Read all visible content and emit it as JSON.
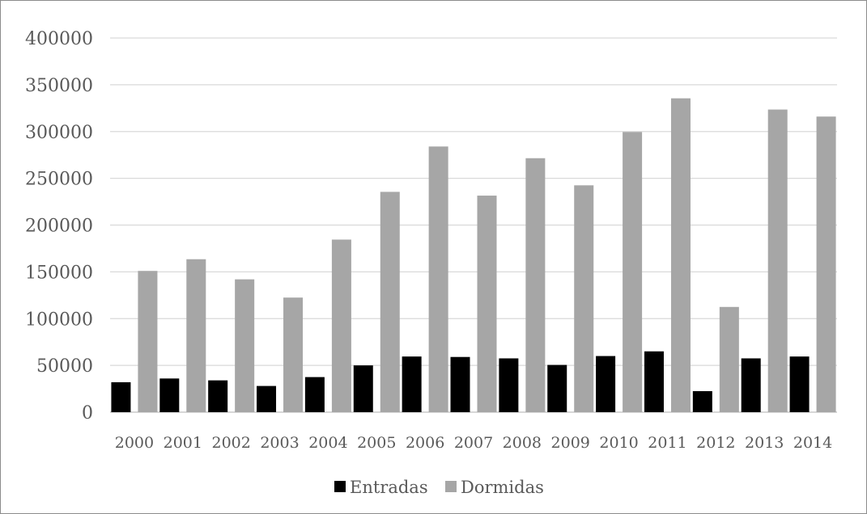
{
  "chart_data": {
    "type": "bar",
    "categories": [
      "2000",
      "2001",
      "2002",
      "2003",
      "2004",
      "2005",
      "2006",
      "2007",
      "2008",
      "2009",
      "2010",
      "2011",
      "2012",
      "2013",
      "2014"
    ],
    "series": [
      {
        "name": "Entradas",
        "color": "#000000",
        "values": [
          32000,
          36000,
          34000,
          28000,
          37500,
          50000,
          59500,
          59000,
          57500,
          50500,
          60000,
          65000,
          22500,
          57500,
          59500
        ]
      },
      {
        "name": "Dormidas",
        "color": "#a6a6a6",
        "values": [
          151000,
          163500,
          142000,
          122500,
          184500,
          235500,
          284000,
          231500,
          271500,
          242500,
          299500,
          335500,
          112500,
          323500,
          316000
        ]
      }
    ],
    "ylim": [
      0,
      400000
    ],
    "yticks": [
      0,
      50000,
      100000,
      150000,
      200000,
      250000,
      300000,
      350000,
      400000
    ],
    "ytick_labels": [
      "0",
      "50000",
      "100000",
      "150000",
      "200000",
      "250000",
      "300000",
      "350000",
      "400000"
    ],
    "grid": true,
    "legend_position": "bottom",
    "title": "",
    "xlabel": "",
    "ylabel": ""
  }
}
